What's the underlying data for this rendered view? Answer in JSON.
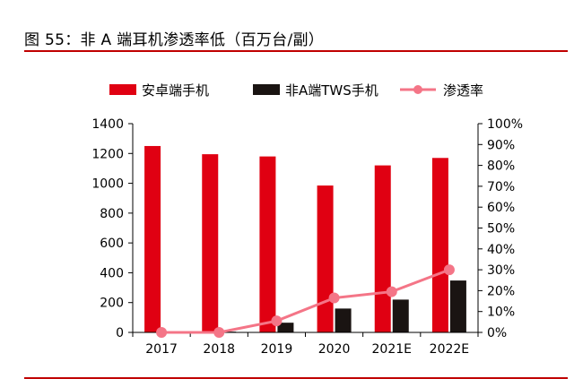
{
  "title": "图 55：非 A 端耳机渗透率低（百万台/副）",
  "colors": {
    "android": "#e00012",
    "tws": "#1a1412",
    "rate": "#f47587",
    "rule": "#c00000"
  },
  "chart_data": {
    "type": "bar",
    "title": "",
    "categories": [
      "2017",
      "2018",
      "2019",
      "2020",
      "2021E",
      "2022E"
    ],
    "series": [
      {
        "name": "安卓端手机",
        "type": "bar",
        "axis": "left",
        "values": [
          1250,
          1195,
          1180,
          985,
          1120,
          1170
        ]
      },
      {
        "name": "非A端TWS手机",
        "type": "bar",
        "axis": "left",
        "values": [
          0,
          5,
          65,
          160,
          220,
          348
        ]
      },
      {
        "name": "渗透率",
        "type": "line",
        "axis": "right",
        "values": [
          0.0,
          0.0,
          0.055,
          0.165,
          0.195,
          0.3
        ]
      }
    ],
    "y_left": {
      "min": 0,
      "max": 1400,
      "ticks": [
        "0",
        "200",
        "400",
        "600",
        "800",
        "1000",
        "1200",
        "1400"
      ]
    },
    "y_right": {
      "min": 0,
      "max": 1,
      "ticks": [
        "0%",
        "10%",
        "20%",
        "30%",
        "40%",
        "50%",
        "60%",
        "70%",
        "80%",
        "90%",
        "100%"
      ]
    },
    "grid": false,
    "legend_position": "top"
  }
}
